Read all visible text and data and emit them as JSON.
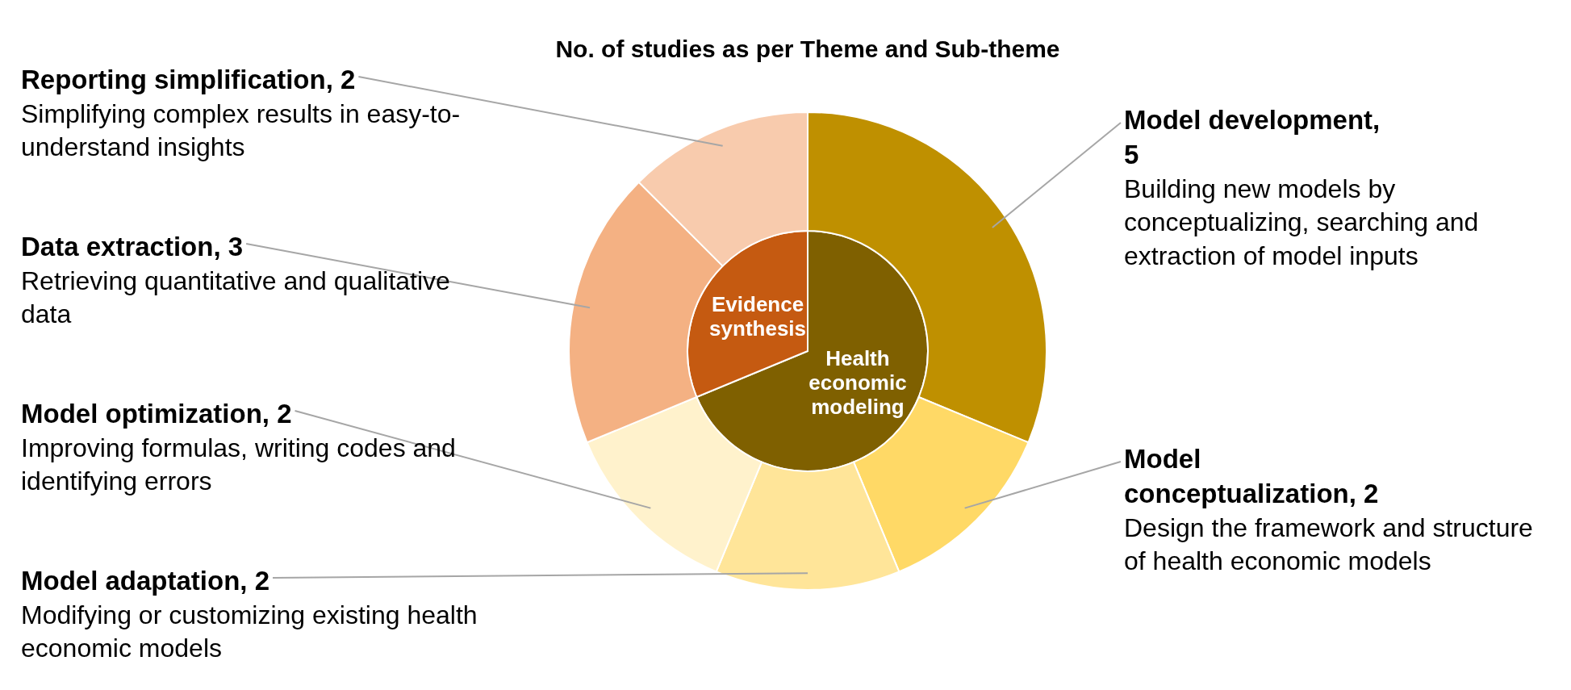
{
  "chart_data": [
    {
      "type": "pie",
      "categories": [
        "Health economic modeling",
        "Evidence synthesis"
      ],
      "values": [
        68.75,
        31.25
      ],
      "colors": [
        "#7f6000",
        "#c55a11"
      ]
    },
    {
      "type": "donut",
      "title": "No. of studies as per Theme and Sub-theme",
      "categories": [
        "Model development, 5",
        "Model conceptualization, 2",
        "Model adaptation, 2",
        "Model optimization, 2",
        "Data extraction, 3",
        "Reporting simplification, 2"
      ],
      "values": [
        5,
        2,
        2,
        2,
        3,
        2
      ],
      "colors": [
        "#bf9000",
        "#ffd966",
        "#ffe599",
        "#fff2cc",
        "#f4b183",
        "#f8cbad"
      ],
      "annotations": [
        {
          "text": "Building new models by conceptualizing, searching and extraction of model inputs",
          "x": "Model development, 5"
        },
        {
          "text": "Design the framework and structure of health economic models",
          "x": "Model conceptualization, 2"
        },
        {
          "text": "Modifying or customizing existing health economic models",
          "x": "Model adaptation, 2"
        },
        {
          "text": "Improving formulas, writing codes and identifying errors",
          "x": "Model optimization, 2"
        },
        {
          "text": "Retrieving quantitative and qualitative data",
          "x": "Data extraction, 3"
        },
        {
          "text": "Simplifying complex results in easy-to-understand insights",
          "x": "Reporting simplification, 2"
        }
      ]
    }
  ]
}
